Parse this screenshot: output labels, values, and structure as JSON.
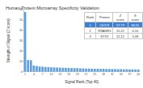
{
  "chart_data": {
    "type": "bar",
    "title": "Human Protein Microarray Specificity Validation",
    "x_label": "Signal Rank (Top 40)",
    "y_label": "Strength of Signal (Z score)",
    "categories": [
      1,
      null,
      null,
      4,
      null,
      null,
      7,
      null,
      null,
      10,
      null,
      null,
      13,
      null,
      null,
      16,
      null,
      null,
      19,
      null,
      null,
      22,
      null,
      null,
      25,
      null,
      null,
      28,
      null,
      null,
      31,
      null,
      null,
      34,
      null,
      null,
      37,
      null,
      null,
      40
    ],
    "values": [
      57.73,
      11.22,
      11.12,
      6,
      5.5,
      5,
      4.8,
      4.6,
      4.4,
      4.2,
      4.1,
      4,
      3.9,
      3.8,
      3.7,
      3.6,
      3.5,
      3.4,
      3.3,
      3.2,
      3.1,
      3,
      2.9,
      2.9,
      2.8,
      2.8,
      2.7,
      2.7,
      2.6,
      2.6,
      2.5,
      2.5,
      2.4,
      2.4,
      2.3,
      2.3,
      2.2,
      2.2,
      2.1,
      2.1
    ],
    "color": "#5da0dd",
    "ylim": [
      0,
      60
    ],
    "yticks": [
      0,
      10,
      20,
      30,
      40,
      50,
      60
    ],
    "grid": false
  },
  "table": {
    "header": [
      "Rank",
      "Protein",
      "Z score",
      "S score"
    ],
    "rows": [
      [
        "1",
        "CD171",
        "57.73",
        "46.51"
      ],
      [
        "2",
        "RNASE3",
        "11.22",
        "0.10"
      ],
      [
        "3",
        "STX3",
        "11.12",
        "5.08"
      ]
    ]
  }
}
